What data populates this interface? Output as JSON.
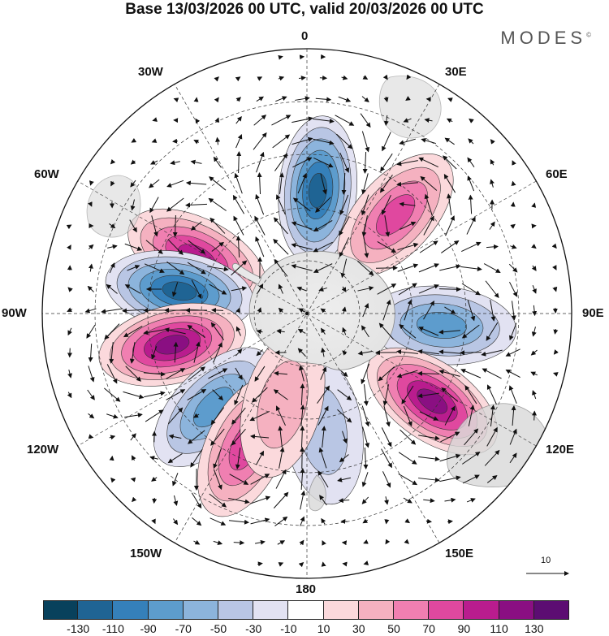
{
  "title": "Base 13/03/2026 00 UTC, valid 20/03/2026 00 UTC",
  "brand": {
    "name": "MODES",
    "mark": "©"
  },
  "longitude_labels": {
    "lon_0": "0",
    "lon_30e": "30E",
    "lon_60e": "60E",
    "lon_90e": "90E",
    "lon_120e": "120E",
    "lon_150e": "150E",
    "lon_180": "180",
    "lon_150w": "150W",
    "lon_120w": "120W",
    "lon_90w": "90W",
    "lon_60w": "60W",
    "lon_30w": "30W"
  },
  "vector_reference": {
    "label": "10"
  },
  "colorbar": {
    "colors": [
      "#08415c",
      "#1f6494",
      "#3580ba",
      "#5d9ccd",
      "#8cb4dc",
      "#b9c6e4",
      "#e2e2f2",
      "#ffffff",
      "#fbd9dc",
      "#f5b1c0",
      "#f07fb1",
      "#e0489f",
      "#b91c8e",
      "#8a0f82",
      "#5c0d72"
    ],
    "ticks": [
      "-130",
      "-110",
      "-90",
      "-70",
      "-50",
      "-30",
      "-10",
      "10",
      "30",
      "50",
      "70",
      "90",
      "110",
      "130"
    ]
  },
  "anomaly_centers": [
    {
      "name": "center-0-negative",
      "lon": 5,
      "lat": -48,
      "value": -120
    },
    {
      "name": "center-40e-positive",
      "lon": 42,
      "lat": -45,
      "value": 85
    },
    {
      "name": "center-60w-positive",
      "lon": -63,
      "lat": -48,
      "value": 110
    },
    {
      "name": "center-80w-negative",
      "lon": -80,
      "lat": -46,
      "value": -135
    },
    {
      "name": "center-105w-positive",
      "lon": -103,
      "lat": -43,
      "value": 130
    },
    {
      "name": "center-95e-negative",
      "lon": 95,
      "lat": -44,
      "value": -85
    },
    {
      "name": "center-125e-positive",
      "lon": 125,
      "lat": -38,
      "value": 120
    },
    {
      "name": "center-135w-negative",
      "lon": -135,
      "lat": -45,
      "value": -90
    },
    {
      "name": "center-155w-positive",
      "lon": -155,
      "lat": -40,
      "value": 95
    },
    {
      "name": "center-175e-negative",
      "lon": 172,
      "lat": -50,
      "value": -55
    },
    {
      "name": "center-165w-positive",
      "lon": -165,
      "lat": -58,
      "value": 45
    }
  ]
}
